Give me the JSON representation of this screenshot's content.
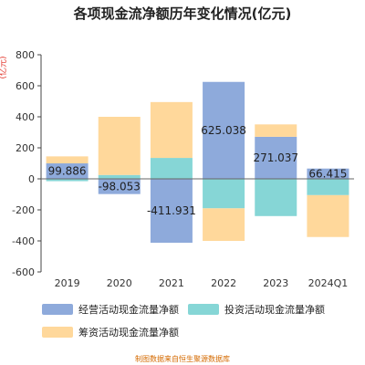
{
  "chart_data": {
    "type": "bar",
    "stacked": true,
    "title": "各项现金流净额历年变化情况(亿元)",
    "ylabel": "(亿元)",
    "categories": [
      "2019",
      "2020",
      "2021",
      "2022",
      "2023",
      "2024Q1"
    ],
    "ylim": [
      -600,
      800
    ],
    "yticks": [
      -600,
      -400,
      -200,
      0,
      200,
      400,
      600,
      800
    ],
    "grid": false,
    "legend_position": "bottom",
    "series": [
      {
        "name": "经营活动现金流量净额",
        "color": "#8eaadb",
        "values": [
          99.886,
          -98.053,
          -411.931,
          625.038,
          271.037,
          66.415
        ]
      },
      {
        "name": "投资活动现金流量净额",
        "color": "#86d6d6",
        "values": [
          -15,
          25,
          135,
          -190,
          -240,
          -105
        ]
      },
      {
        "name": "筹资活动现金流量净额",
        "color": "#ffd89b",
        "values": [
          45,
          375,
          360,
          -210,
          80,
          -270
        ]
      }
    ],
    "data_labels": [
      "99.886",
      "-98.053",
      "-411.931",
      "625.038",
      "271.037",
      "66.415"
    ]
  },
  "footer": "制图数据来自恒生聚源数据库"
}
